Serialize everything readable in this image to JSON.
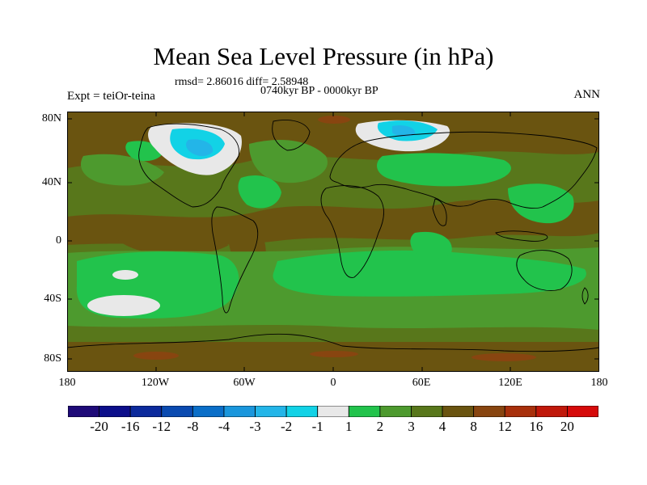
{
  "title": "Mean Sea Level Pressure (in hPa)",
  "stats": "rmsd= 2.86016 diff= 2.58948",
  "period": "0740kyr BP - 0000kyr BP",
  "experiment": "Expt = teiOr-teina",
  "season": "ANN",
  "lat_labels": [
    "80N",
    "40N",
    "0",
    "40S",
    "80S"
  ],
  "lon_labels": [
    "180",
    "120W",
    "60W",
    "0",
    "60E",
    "120E",
    "180"
  ],
  "colorbar": {
    "labels": [
      "-20",
      "-16",
      "-12",
      "-8",
      "-4",
      "-3",
      "-2",
      "-1",
      "1",
      "2",
      "3",
      "4",
      "8",
      "12",
      "16",
      "20"
    ],
    "colors": [
      "#1e0a78",
      "#0c0e8a",
      "#0c2a9c",
      "#0a4ab0",
      "#0a6ec8",
      "#1a96dc",
      "#23b5e8",
      "#12d2e6",
      "#e8e8e8",
      "#22c34c",
      "#4d9a2e",
      "#58771b",
      "#6a5410",
      "#884510",
      "#a8300c",
      "#c0180a",
      "#d60a0a"
    ]
  },
  "legend_colors": {
    "brown_4_8": "#6a5410",
    "olive_3_4": "#58771b",
    "green_2_3": "#4d9a2e",
    "bright_green_1_2": "#22c34c",
    "white_-1_1": "#e8e8e8",
    "cyan_-2_-1": "#12d2e6",
    "light_blue_-3_-2": "#23b5e8",
    "red_brown_8_12": "#884510"
  }
}
